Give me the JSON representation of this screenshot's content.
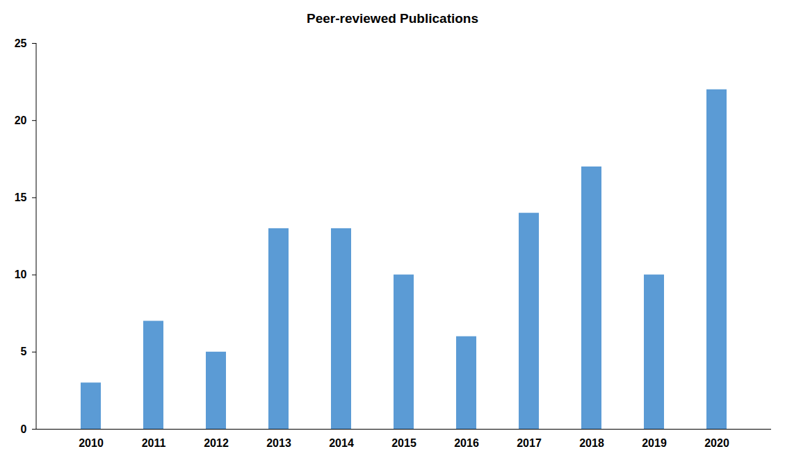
{
  "chart_data": {
    "type": "bar",
    "title": "Peer-reviewed Publications",
    "categories": [
      "2010",
      "2011",
      "2012",
      "2013",
      "2014",
      "2015",
      "2016",
      "2017",
      "2018",
      "2019",
      "2020"
    ],
    "values": [
      3,
      7,
      5,
      13,
      13,
      10,
      6,
      14,
      17,
      10,
      22
    ],
    "color": "#5b9bd5",
    "ylim": [
      0,
      25
    ],
    "yticks": [
      0,
      5,
      10,
      15,
      20,
      25
    ],
    "grid": false
  }
}
